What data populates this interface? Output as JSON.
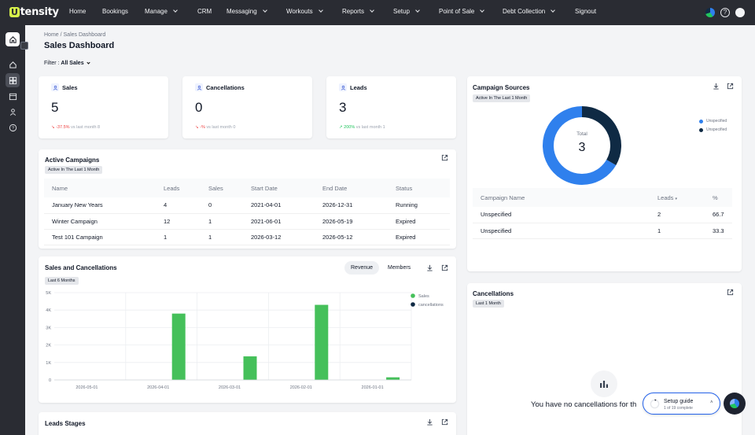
{
  "brand": {
    "logo_letter": "U",
    "logo_rest": "tensity"
  },
  "nav": [
    {
      "label": "Home",
      "chevron": false
    },
    {
      "label": "Bookings",
      "chevron": false
    },
    {
      "label": "Manage",
      "chevron": true
    },
    {
      "label": "CRM",
      "chevron": false
    },
    {
      "label": "Messaging",
      "chevron": true
    },
    {
      "label": "Workouts",
      "chevron": true
    },
    {
      "label": "Reports",
      "chevron": true
    },
    {
      "label": "Setup",
      "chevron": true
    },
    {
      "label": "Point of Sale",
      "chevron": true
    },
    {
      "label": "Debt Collection",
      "chevron": true
    },
    {
      "label": "Signout",
      "chevron": false
    }
  ],
  "breadcrumb": "Home / Sales Dashboard",
  "page_title": "Sales Dashboard",
  "filter": {
    "label": "Filter :",
    "value": "All Sales"
  },
  "stats": [
    {
      "label": "Sales",
      "value": "5",
      "change": "-37.5%",
      "change_dir": "down",
      "foot": "vs last month 8"
    },
    {
      "label": "Cancellations",
      "value": "0",
      "change": "-%",
      "change_dir": "down",
      "foot": "vs last month 0"
    },
    {
      "label": "Leads",
      "value": "3",
      "change": "200%",
      "change_dir": "up",
      "foot": "vs last month 1"
    }
  ],
  "campaigns": {
    "title": "Active Campaigns",
    "chip": "Active In The Last 1 Month",
    "columns": [
      "Name",
      "Leads",
      "Sales",
      "Start Date",
      "End Date",
      "Status"
    ],
    "rows": [
      [
        "January New Years",
        "4",
        "0",
        "2021-04-01",
        "2026-12-31",
        "Running"
      ],
      [
        "Winter Campaign",
        "12",
        "1",
        "2021-06-01",
        "2026-05-19",
        "Expired"
      ],
      [
        "Test 101 Campaign",
        "1",
        "1",
        "2026-03-12",
        "2026-05-12",
        "Expired"
      ]
    ]
  },
  "sources": {
    "title": "Campaign Sources",
    "chip": "Active In The Last 1 Month",
    "total_label": "Total",
    "total_value": "3",
    "legend": [
      {
        "name": "Unspecified",
        "color": "#2f80ed"
      },
      {
        "name": "Unspecified",
        "color": "#0f2a44"
      }
    ],
    "columns": [
      "Campaign Name",
      "Leads",
      "%"
    ],
    "rows": [
      [
        "Unspecified",
        "2",
        "66.7"
      ],
      [
        "Unspecified",
        "1",
        "33.3"
      ]
    ]
  },
  "sales_chart_card": {
    "title": "Sales and Cancellations",
    "chip": "Last 6 Months",
    "tabs": [
      "Revenue",
      "Members"
    ]
  },
  "cancellations_card": {
    "title": "Cancellations",
    "chip": "Last 1 Month",
    "empty_text": "You have no cancellations for th"
  },
  "leads_stages": {
    "title": "Leads Stages"
  },
  "setup_guide": {
    "title": "Setup guide",
    "subtitle": "1 of 19 complete"
  },
  "colors": {
    "nav_bg": "#2a2c33",
    "sales_green": "#45c05a",
    "cancel_navy": "#0f2a44",
    "donut_blue": "#2f80ed"
  },
  "chart_data": [
    {
      "type": "bar",
      "categories": [
        "2026-05-01",
        "2026-04-01",
        "2026-03-01",
        "2026-02-01",
        "2026-01-01"
      ],
      "series": [
        {
          "name": "Sales",
          "values": [
            0,
            3800,
            1350,
            4300,
            150
          ],
          "color": "#45c05a"
        },
        {
          "name": "cancellations",
          "values": [
            0,
            0,
            0,
            0,
            0
          ],
          "color": "#0f2a44"
        }
      ],
      "ylim": [
        0,
        5000
      ],
      "yticks": [
        "0",
        "1K",
        "2K",
        "3K",
        "4K",
        "5K"
      ],
      "grid": true,
      "legend": "top-right"
    },
    {
      "type": "pie",
      "labels": [
        "Unspecified",
        "Unspecified"
      ],
      "values": [
        2,
        1
      ],
      "colors": [
        "#2f80ed",
        "#0f2a44"
      ],
      "legend": "right"
    }
  ]
}
